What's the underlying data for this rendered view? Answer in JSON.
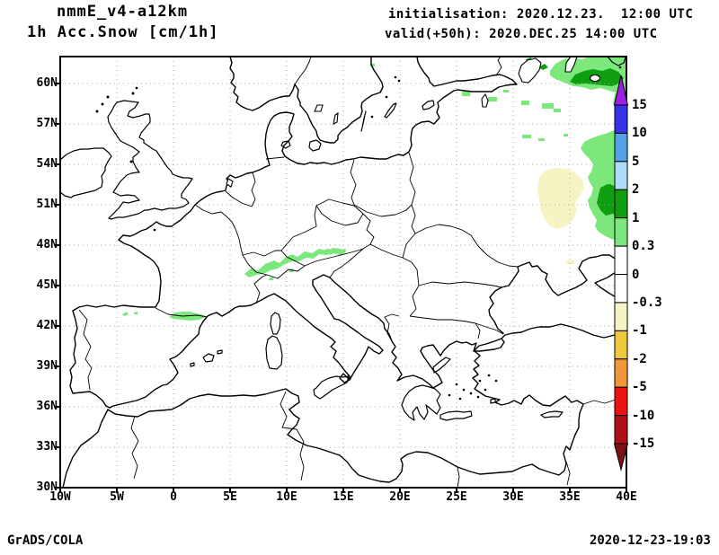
{
  "header": {
    "title_line1": "nmmE_v4-a12km",
    "title_line2": "1h Acc.Snow [cm/1h]",
    "init_line": "initialisation: 2020.12.23.  12:00 UTC",
    "valid_line": "valid(+50h): 2020.DEC.25 14:00 UTC"
  },
  "axes": {
    "lat_labels": [
      "60N",
      "57N",
      "54N",
      "51N",
      "48N",
      "45N",
      "42N",
      "39N",
      "36N",
      "33N",
      "30N"
    ],
    "lon_labels": [
      "10W",
      "5W",
      "0",
      "5E",
      "10E",
      "15E",
      "20E",
      "25E",
      "30E",
      "35E",
      "40E"
    ]
  },
  "colorbar": {
    "tick_labels": [
      "15",
      "10",
      "5",
      "2",
      "1",
      "0.3",
      "0",
      "-0.3",
      "-1",
      "-2",
      "-5",
      "-10",
      "-15"
    ],
    "segment_colors": [
      "#3533e8",
      "#55a2e8",
      "#acdcf7",
      "#0f9e0f",
      "#7ce87c",
      "#ffffff",
      "#ffffff",
      "#f7f4c3",
      "#edc93f",
      "#f0973b",
      "#ee1212",
      "#b01015"
    ],
    "arrow_top_color": "#9a1fe0",
    "arrow_bottom_color": "#7d1012"
  },
  "palette": {
    "snow_light": "#7ce87c",
    "snow_dark": "#0f9e0f",
    "negative_light": "#f7f4c3",
    "grid": "#a8a8a8",
    "coast": "#000000",
    "background": "#ffffff"
  },
  "map_regions": [
    {
      "name": "alps-band",
      "shade": "light-green",
      "range": "0.3–1 cm/1h"
    },
    {
      "name": "pyrenees-band",
      "shade": "light-green",
      "range": "0.3–1 cm/1h"
    },
    {
      "name": "nw-russia-baltic",
      "shade": "light-green / dark-green",
      "range": "0.3–2 cm/1h"
    },
    {
      "name": "west-russia-ukraine",
      "shade": "pale-yellow",
      "range": "-0.3–-1 cm/1h"
    }
  ],
  "footer": {
    "credit": "GrADS/COLA",
    "timestamp": "2020-12-23-19:03"
  }
}
